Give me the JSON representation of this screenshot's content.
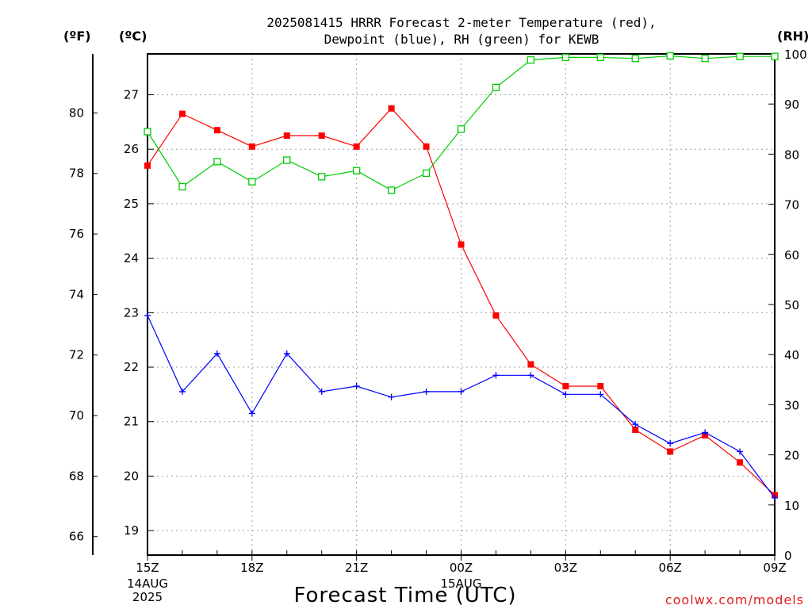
{
  "chart_data": {
    "type": "line",
    "title_line1": "2025081415 HRRR Forecast 2-meter Temperature (red),",
    "title_line2": "Dewpoint (blue), RH (green) for KEWB",
    "left_outer_unit": "(ºF)",
    "left_inner_unit": "(ºC)",
    "right_unit": "(RH)",
    "xlabel": "Forecast Time (UTC)",
    "credit": "coolwx.com/models",
    "x": [
      "15Z",
      "16Z",
      "17Z",
      "18Z",
      "19Z",
      "20Z",
      "21Z",
      "22Z",
      "23Z",
      "00Z",
      "01Z",
      "02Z",
      "03Z",
      "04Z",
      "05Z",
      "06Z",
      "07Z",
      "08Z",
      "09Z"
    ],
    "x_tick_labels": [
      "15Z",
      "18Z",
      "21Z",
      "00Z",
      "03Z",
      "06Z",
      "09Z"
    ],
    "date_labels": [
      {
        "at": "15Z",
        "lines": [
          "14AUG",
          "2025"
        ]
      },
      {
        "at": "00Z",
        "lines": [
          "15AUG"
        ]
      }
    ],
    "celsius_axis": {
      "min": 18.55,
      "max": 27.75,
      "ticks": [
        19,
        20,
        21,
        22,
        23,
        24,
        25,
        26,
        27
      ]
    },
    "fahrenheit_axis": {
      "ticks": [
        66,
        68,
        70,
        72,
        74,
        76,
        78,
        80
      ]
    },
    "rh_axis": {
      "min": 0,
      "max": 100,
      "ticks": [
        0,
        10,
        20,
        30,
        40,
        50,
        60,
        70,
        80,
        90,
        100
      ]
    },
    "grid": true,
    "series": [
      {
        "name": "Temperature",
        "axis": "celsius",
        "color": "#ff0000",
        "marker": "filled-square",
        "values": [
          25.7,
          26.65,
          26.35,
          26.05,
          26.25,
          26.25,
          26.05,
          26.75,
          26.05,
          24.25,
          22.95,
          22.05,
          21.65,
          21.65,
          20.85,
          20.45,
          20.75,
          20.25,
          19.65
        ]
      },
      {
        "name": "Dewpoint",
        "axis": "celsius",
        "color": "#0000ff",
        "marker": "plus",
        "values": [
          22.95,
          21.55,
          22.25,
          21.15,
          22.25,
          21.55,
          21.65,
          21.45,
          21.55,
          21.55,
          21.85,
          21.85,
          21.5,
          21.5,
          20.95,
          20.6,
          20.8,
          20.45,
          19.6
        ]
      },
      {
        "name": "RH",
        "axis": "rh",
        "color": "#00cc00",
        "marker": "open-square",
        "values": [
          84.5,
          73.5,
          78.5,
          74.5,
          78.8,
          75.5,
          76.7,
          72.8,
          76.2,
          85,
          93.3,
          98.8,
          99.3,
          99.3,
          99.1,
          99.6,
          99.1,
          99.5,
          99.5
        ]
      }
    ]
  }
}
